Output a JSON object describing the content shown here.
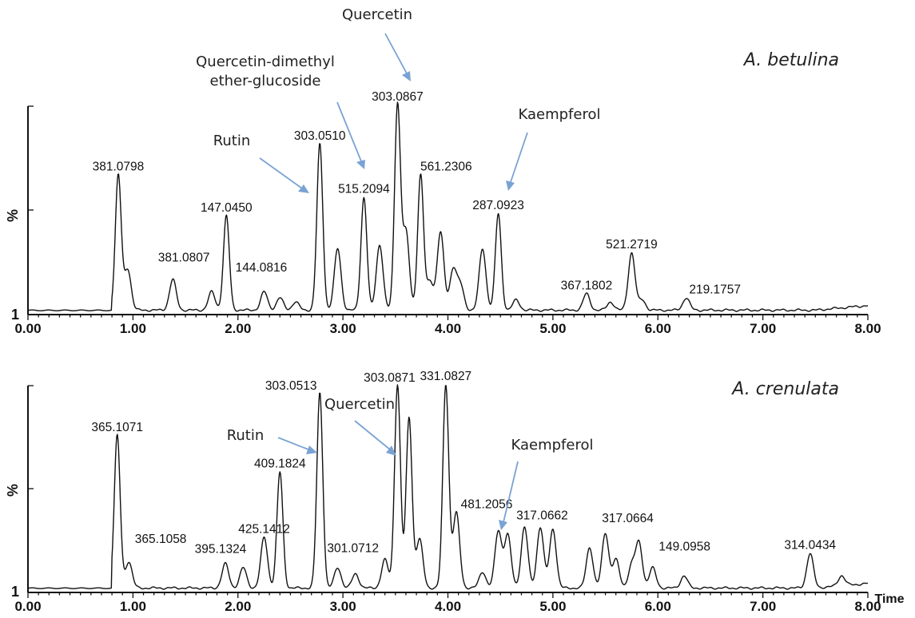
{
  "chart_data": [
    {
      "type": "line",
      "title": "A. betulina",
      "ylabel": "%",
      "y_min_label": "1",
      "xlabel": "",
      "xlim": [
        0,
        8
      ],
      "ylim": [
        0,
        100
      ],
      "x_ticks": [
        "0.00",
        "1.00",
        "2.00",
        "3.00",
        "4.00",
        "5.00",
        "6.00",
        "7.00",
        "8.00"
      ],
      "peaks": [
        {
          "t": 0.86,
          "h": 66,
          "label": "381.0798"
        },
        {
          "t": 0.95,
          "h": 20,
          "label": "381.0807"
        },
        {
          "t": 1.38,
          "h": 15
        },
        {
          "t": 1.75,
          "h": 9
        },
        {
          "t": 1.89,
          "h": 46,
          "label": "147.0450"
        },
        {
          "t": 2.25,
          "h": 9,
          "label": "144.0816"
        },
        {
          "t": 2.4,
          "h": 6
        },
        {
          "t": 2.55,
          "h": 4
        },
        {
          "t": 2.78,
          "h": 81,
          "label": "303.0510"
        },
        {
          "t": 2.95,
          "h": 30
        },
        {
          "t": 3.2,
          "h": 55,
          "label": "515.2094"
        },
        {
          "t": 3.35,
          "h": 32
        },
        {
          "t": 3.52,
          "h": 100,
          "label": "303.0867"
        },
        {
          "t": 3.6,
          "h": 38
        },
        {
          "t": 3.74,
          "h": 66,
          "label": "561.2306"
        },
        {
          "t": 3.83,
          "h": 14
        },
        {
          "t": 3.93,
          "h": 38
        },
        {
          "t": 4.05,
          "h": 20
        },
        {
          "t": 4.12,
          "h": 12
        },
        {
          "t": 4.33,
          "h": 30
        },
        {
          "t": 4.48,
          "h": 47,
          "label": "287.0923"
        },
        {
          "t": 4.65,
          "h": 5
        },
        {
          "t": 5.32,
          "h": 8,
          "label": "367.1802"
        },
        {
          "t": 5.55,
          "h": 4
        },
        {
          "t": 5.75,
          "h": 28,
          "label": "521.2719"
        },
        {
          "t": 5.85,
          "h": 5
        },
        {
          "t": 6.27,
          "h": 6,
          "label": "219.1757"
        }
      ],
      "annotations": [
        {
          "lines": [
            "Quercetin"
          ],
          "target_t": 3.52,
          "target_h": 112
        },
        {
          "lines": [
            "Quercetin-dimethyl",
            "ether-glucoside"
          ],
          "target_t": 3.22,
          "target_h": 70
        },
        {
          "lines": [
            "Rutin"
          ],
          "target_t": 2.72,
          "target_h": 58
        },
        {
          "lines": [
            "Kaempferol"
          ],
          "target_t": 4.52,
          "target_h": 58
        }
      ]
    },
    {
      "type": "line",
      "title": "A. crenulata",
      "ylabel": "%",
      "y_min_label": "1",
      "xlabel": "Time",
      "xlim": [
        0,
        8
      ],
      "ylim": [
        0,
        100
      ],
      "x_ticks": [
        "0.00",
        "1.00",
        "2.00",
        "3.00",
        "4.00",
        "5.00",
        "6.00",
        "7.00",
        "8.00"
      ],
      "peaks": [
        {
          "t": 0.85,
          "h": 75,
          "label": "365.1071"
        },
        {
          "t": 0.96,
          "h": 13,
          "label": "365.1058"
        },
        {
          "t": 1.88,
          "h": 12,
          "label": "395.1324"
        },
        {
          "t": 2.05,
          "h": 10
        },
        {
          "t": 2.25,
          "h": 25,
          "label": "425.1412"
        },
        {
          "t": 2.4,
          "h": 57,
          "label": "409.1824"
        },
        {
          "t": 2.78,
          "h": 96,
          "label": "303.0513"
        },
        {
          "t": 2.95,
          "h": 10
        },
        {
          "t": 3.12,
          "h": 7
        },
        {
          "t": 3.4,
          "h": 14,
          "label": "301.0712"
        },
        {
          "t": 3.52,
          "h": 100,
          "label": "303.0871"
        },
        {
          "t": 3.63,
          "h": 84
        },
        {
          "t": 3.73,
          "h": 24
        },
        {
          "t": 3.98,
          "h": 100,
          "label": "331.0827"
        },
        {
          "t": 4.08,
          "h": 37,
          "label": "481.2056"
        },
        {
          "t": 4.33,
          "h": 8
        },
        {
          "t": 4.48,
          "h": 28
        },
        {
          "t": 4.57,
          "h": 26
        },
        {
          "t": 4.73,
          "h": 30,
          "label": "317.0662"
        },
        {
          "t": 4.88,
          "h": 30
        },
        {
          "t": 5.0,
          "h": 29
        },
        {
          "t": 5.35,
          "h": 20
        },
        {
          "t": 5.5,
          "h": 27,
          "label": "317.0664"
        },
        {
          "t": 5.6,
          "h": 14
        },
        {
          "t": 5.75,
          "h": 11
        },
        {
          "t": 5.82,
          "h": 22
        },
        {
          "t": 5.95,
          "h": 10,
          "label": "149.0958"
        },
        {
          "t": 6.25,
          "h": 6
        },
        {
          "t": 7.45,
          "h": 17,
          "label": "314.0434"
        },
        {
          "t": 7.75,
          "h": 5
        }
      ],
      "annotations": [
        {
          "lines": [
            "Rutin"
          ],
          "target_t": 2.76,
          "target_h": 70
        },
        {
          "lines": [
            "Quercetin"
          ],
          "target_t": 3.48,
          "target_h": 66
        },
        {
          "lines": [
            "Kaempferol"
          ],
          "target_t": 4.5,
          "target_h": 30
        }
      ]
    }
  ]
}
